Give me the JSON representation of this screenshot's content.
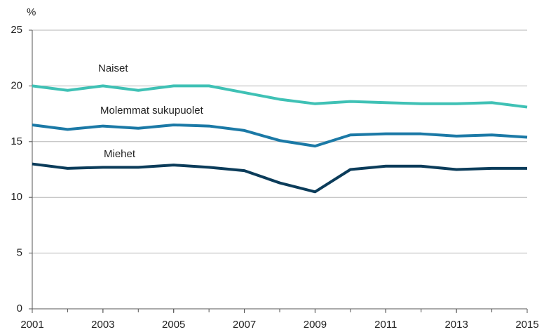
{
  "chart_data": {
    "type": "line",
    "y_axis_label": "%",
    "x": [
      2001,
      2002,
      2003,
      2004,
      2005,
      2006,
      2007,
      2008,
      2009,
      2010,
      2011,
      2012,
      2013,
      2014,
      2015
    ],
    "series": [
      {
        "name": "Naiset",
        "color": "#3fc1b5",
        "values": [
          20.0,
          19.6,
          20.0,
          19.6,
          20.0,
          20.0,
          19.4,
          18.8,
          18.4,
          18.6,
          18.5,
          18.4,
          18.4,
          18.5,
          18.1
        ]
      },
      {
        "name": "Molemmat sukupuolet",
        "color": "#1b79a6",
        "values": [
          16.5,
          16.1,
          16.4,
          16.2,
          16.5,
          16.4,
          16.0,
          15.1,
          14.6,
          15.6,
          15.7,
          15.7,
          15.5,
          15.6,
          15.4
        ]
      },
      {
        "name": "Miehet",
        "color": "#0b3c5a",
        "values": [
          13.0,
          12.6,
          12.7,
          12.7,
          12.9,
          12.7,
          12.4,
          11.3,
          10.5,
          12.5,
          12.8,
          12.8,
          12.5,
          12.6,
          12.6
        ]
      }
    ],
    "xlim": [
      2001,
      2015
    ],
    "xticks": [
      2001,
      2003,
      2005,
      2007,
      2009,
      2011,
      2013,
      2015
    ],
    "ylim": [
      0,
      25
    ],
    "yticks": [
      0,
      5,
      10,
      15,
      20,
      25
    ],
    "grid": true
  }
}
